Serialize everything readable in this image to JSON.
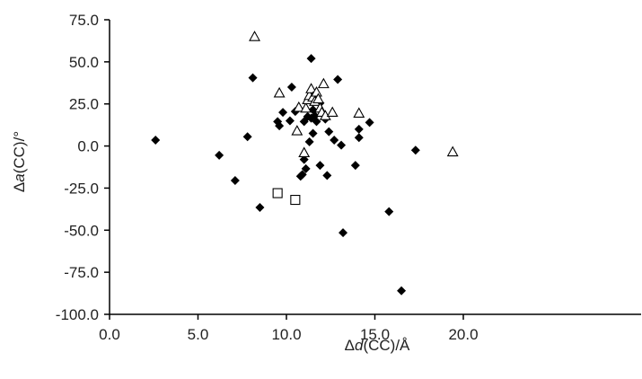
{
  "chart_data": {
    "type": "scatter",
    "xlabel": {
      "prefix": "Δ",
      "var": "d",
      "suffix": "(CC)/Å"
    },
    "ylabel": {
      "prefix": "Δ",
      "var": "a",
      "suffix": "(CC)/°"
    },
    "xlim": [
      0,
      22
    ],
    "ylim": [
      -100,
      75
    ],
    "x_ticks": [
      0,
      5,
      10,
      15,
      20
    ],
    "x_tick_labels": [
      "0.0",
      "5.0",
      "10.0",
      "15.0",
      "20.0"
    ],
    "y_ticks": [
      75,
      50,
      25,
      0,
      -25,
      -50,
      -75,
      -100
    ],
    "y_tick_labels": [
      "75.0",
      "50.0",
      "25.0",
      "0.0",
      "-25.0",
      "-50.0",
      "-75.0",
      "-100.0"
    ],
    "grid": false,
    "legend": "none",
    "series": [
      {
        "marker": "diamond",
        "color": "#000000",
        "points": [
          [
            2.6,
            3.5
          ],
          [
            6.2,
            -5.5
          ],
          [
            7.1,
            -20.5
          ],
          [
            7.8,
            5.5
          ],
          [
            8.1,
            40.5
          ],
          [
            8.5,
            -36.5
          ],
          [
            9.5,
            14.5
          ],
          [
            9.6,
            12.0
          ],
          [
            9.8,
            20.0
          ],
          [
            10.2,
            15.0
          ],
          [
            10.3,
            35.0
          ],
          [
            10.5,
            20.5
          ],
          [
            10.8,
            -18.0
          ],
          [
            10.9,
            -17.0
          ],
          [
            11.0,
            -8.0
          ],
          [
            11.1,
            -13.5
          ],
          [
            11.0,
            14.5
          ],
          [
            11.2,
            17.5
          ],
          [
            11.3,
            2.5
          ],
          [
            11.4,
            52.0
          ],
          [
            11.4,
            16.5
          ],
          [
            11.5,
            7.5
          ],
          [
            11.5,
            21.5
          ],
          [
            11.6,
            18.0
          ],
          [
            11.7,
            14.5
          ],
          [
            11.9,
            -11.5
          ],
          [
            11.9,
            25.5
          ],
          [
            12.2,
            16.0
          ],
          [
            12.3,
            -17.5
          ],
          [
            12.4,
            8.5
          ],
          [
            12.7,
            3.5
          ],
          [
            12.9,
            39.5
          ],
          [
            13.1,
            0.5
          ],
          [
            13.2,
            -51.5
          ],
          [
            13.9,
            -11.5
          ],
          [
            14.1,
            5.0
          ],
          [
            14.1,
            10.0
          ],
          [
            14.7,
            14.0
          ],
          [
            15.8,
            -39.0
          ],
          [
            16.5,
            -86.0
          ],
          [
            17.3,
            -2.5
          ]
        ]
      },
      {
        "marker": "triangle-open",
        "color": "#000000",
        "points": [
          [
            8.2,
            65.0
          ],
          [
            9.6,
            31.5
          ],
          [
            10.6,
            9.0
          ],
          [
            10.7,
            23.0
          ],
          [
            11.0,
            -4.0
          ],
          [
            11.1,
            22.5
          ],
          [
            11.2,
            27.5
          ],
          [
            11.3,
            30.0
          ],
          [
            11.4,
            34.0
          ],
          [
            11.5,
            29.0
          ],
          [
            11.6,
            26.5
          ],
          [
            11.7,
            32.0
          ],
          [
            11.8,
            28.0
          ],
          [
            11.9,
            22.5
          ],
          [
            12.0,
            20.0
          ],
          [
            12.1,
            37.0
          ],
          [
            12.2,
            18.0
          ],
          [
            12.6,
            20.0
          ],
          [
            14.1,
            19.5
          ],
          [
            19.4,
            -3.5
          ]
        ]
      },
      {
        "marker": "square-open",
        "color": "#000000",
        "points": [
          [
            9.5,
            -28.0
          ],
          [
            10.5,
            -32.0
          ]
        ]
      }
    ]
  }
}
